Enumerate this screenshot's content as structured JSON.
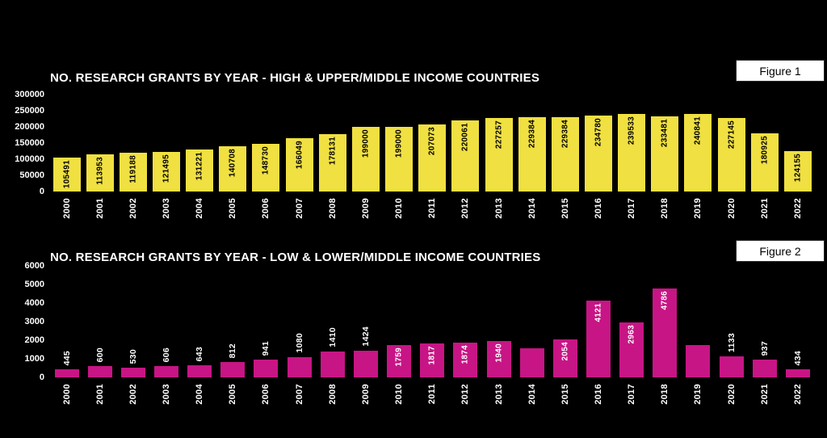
{
  "chart_data": [
    {
      "type": "bar",
      "figure_label": "Figure 1",
      "title": "NO. RESEARCH GRANTS BY YEAR - HIGH & UPPER/MIDDLE INCOME COUNTRIES",
      "categories": [
        "2000",
        "2001",
        "2002",
        "2003",
        "2004",
        "2005",
        "2006",
        "2007",
        "2008",
        "2009",
        "2010",
        "2011",
        "2012",
        "2013",
        "2014",
        "2015",
        "2016",
        "2017",
        "2018",
        "2019",
        "2020",
        "2021",
        "2022"
      ],
      "values": [
        105491,
        113953,
        119188,
        121495,
        131221,
        140708,
        148730,
        166049,
        178131,
        199000,
        199000,
        207073,
        220061,
        227257,
        229384,
        229384,
        234780,
        239533,
        233481,
        240841,
        227145,
        180925,
        124155
      ],
      "bar_labels": [
        "105491",
        "113953",
        "119188",
        "121495",
        "131221",
        "140708",
        "148730",
        "166049",
        "178131",
        "199000",
        "199000",
        "207073",
        "220061",
        "227257",
        "229384",
        "229384",
        "234780",
        "239533",
        "233481",
        "240841",
        "227145",
        "180925",
        "124155"
      ],
      "ylim": [
        0,
        300000
      ],
      "yticks": [
        0,
        50000,
        100000,
        150000,
        200000,
        250000,
        300000
      ],
      "grid": false,
      "legend": null,
      "bar_color": "#F0E041",
      "bar_label_color": "#000000",
      "bar_label_position": "inside",
      "axis_text_color": "#FFFFFF",
      "background_color": "#000000"
    },
    {
      "type": "bar",
      "figure_label": "Figure 2",
      "title": "NO. RESEARCH GRANTS BY YEAR - LOW & LOWER/MIDDLE INCOME COUNTRIES",
      "categories": [
        "2000",
        "2001",
        "2002",
        "2003",
        "2004",
        "2005",
        "2006",
        "2007",
        "2008",
        "2009",
        "2010",
        "2011",
        "2012",
        "2013",
        "2014",
        "2015",
        "2016",
        "2017",
        "2018",
        "2019",
        "2020",
        "2021",
        "2022"
      ],
      "values": [
        445,
        600,
        530,
        606,
        643,
        812,
        941,
        1080,
        1410,
        1424,
        1759,
        1817,
        1874,
        1940,
        1550,
        2054,
        4121,
        2963,
        4786,
        1750,
        1133,
        937,
        434
      ],
      "bar_labels": [
        "445",
        "600",
        "530",
        "606",
        "643",
        "812",
        "941",
        "1080",
        "1410",
        "1424",
        "1759",
        "1817",
        "1874",
        "1940",
        "",
        "2054",
        "4121",
        "2963",
        "4786",
        "",
        "1133",
        "937",
        "434"
      ],
      "unlabeled_bar_indices": [
        14,
        19
      ],
      "ylim": [
        0,
        6000
      ],
      "yticks": [
        0,
        1000,
        2000,
        3000,
        4000,
        5000,
        6000
      ],
      "grid": false,
      "legend": null,
      "bar_color": "#C71585",
      "bar_label_color": "#FFFFFF",
      "bar_label_position": "auto",
      "axis_text_color": "#FFFFFF",
      "background_color": "#000000"
    }
  ]
}
